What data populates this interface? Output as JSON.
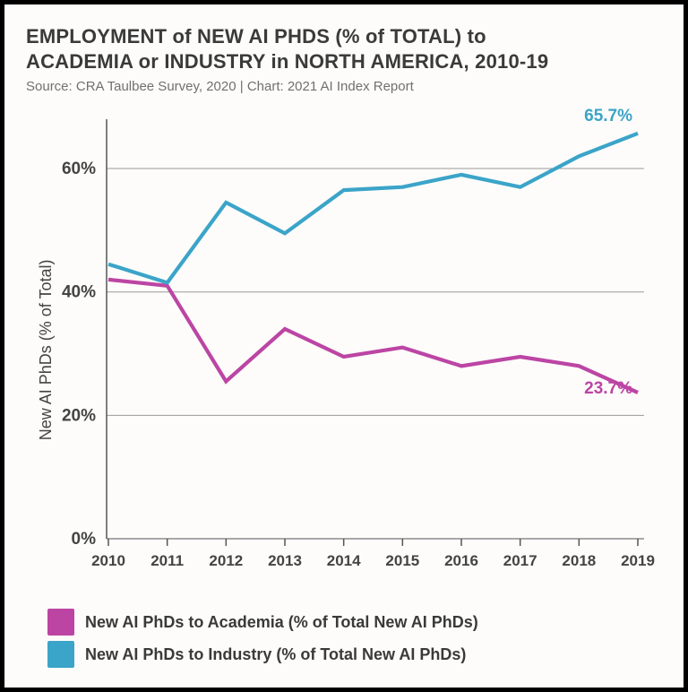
{
  "title_line1": "EMPLOYMENT of NEW AI PHDS (% of TOTAL) to",
  "title_line2": "ACADEMIA or INDUSTRY in NORTH AMERICA, 2010-19",
  "source": "Source: CRA Taulbee Survey, 2020 | Chart: 2021 AI Index Report",
  "y_axis_title": "New AI PhDs (% of Total)",
  "chart": {
    "type": "line",
    "background_color": "#fdfcfa",
    "grid_color": "#9a9a9a",
    "baseline_color": "#555555",
    "x": {
      "categories": [
        "2010",
        "2011",
        "2012",
        "2013",
        "2014",
        "2015",
        "2016",
        "2017",
        "2018",
        "2019"
      ]
    },
    "y": {
      "min": 0,
      "max": 68,
      "ticks": [
        0,
        20,
        40,
        60
      ],
      "tick_labels": [
        "0%",
        "20%",
        "40%",
        "60%"
      ]
    },
    "series": [
      {
        "id": "academia",
        "label": "New AI PhDs to Academia (% of Total New AI PhDs)",
        "color": "#bc45a4",
        "values": [
          42.0,
          41.0,
          25.5,
          34.0,
          29.5,
          31.0,
          28.0,
          29.5,
          28.0,
          23.7
        ],
        "end_label": "23.7%",
        "end_label_dy": 1
      },
      {
        "id": "industry",
        "label": "New AI PhDs to Industry (% of Total New AI PhDs)",
        "color": "#3ba4c9",
        "values": [
          44.5,
          41.5,
          54.5,
          49.5,
          56.5,
          57.0,
          59.0,
          57.0,
          62.0,
          65.7
        ],
        "end_label": "65.7%",
        "end_label_dy": -14
      }
    ],
    "line_width": 4.2,
    "font_family": "Arial",
    "tick_fontsize": 19,
    "end_label_fontsize": 19
  },
  "legend": {
    "items": [
      {
        "color": "#bc45a4",
        "label": "New AI PhDs to Academia (% of Total New AI PhDs)"
      },
      {
        "color": "#3ba4c9",
        "label": "New AI PhDs to Industry (% of Total New AI PhDs)"
      }
    ]
  }
}
